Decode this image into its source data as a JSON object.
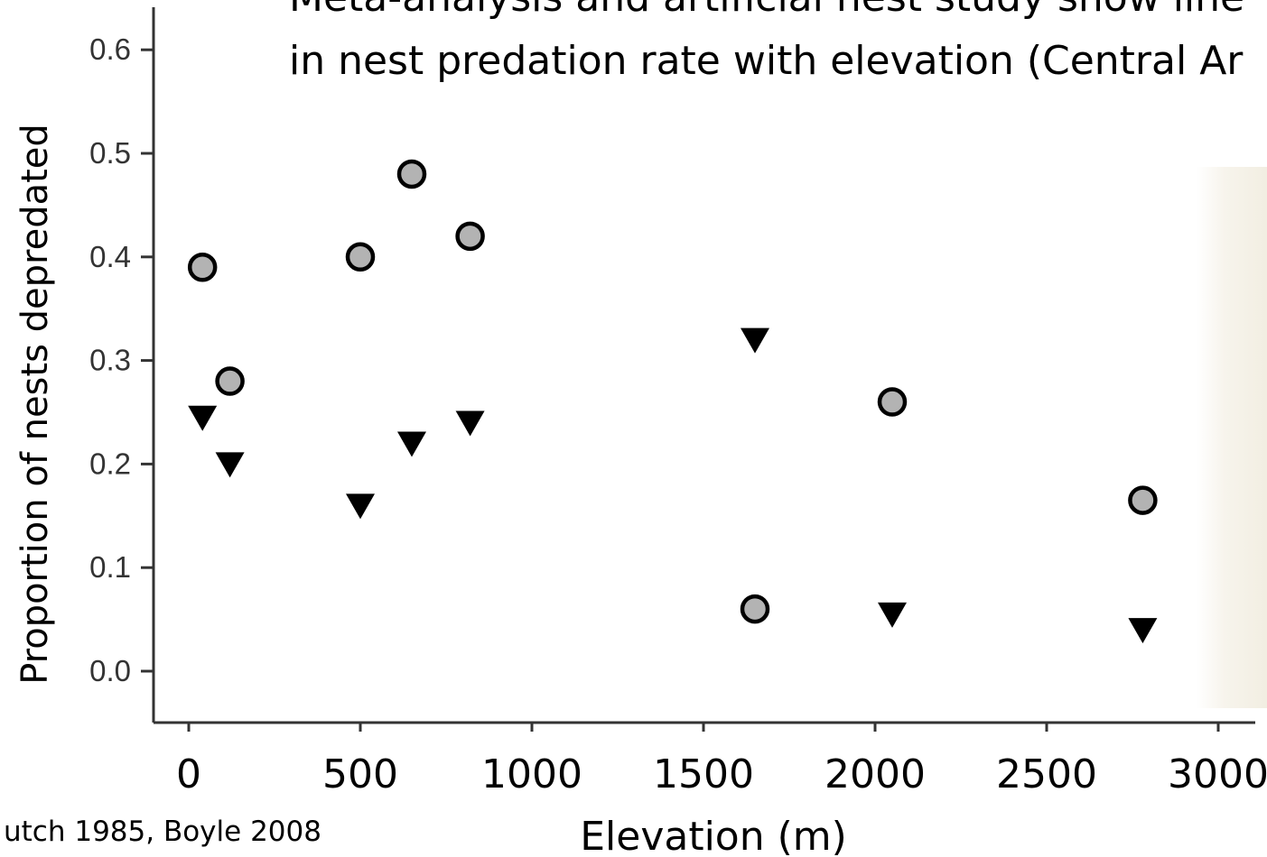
{
  "header": {
    "title_line_1": "Meta-analysis and artificial nest study show line",
    "title_line_2": "in nest predation rate with elevation (Central Ar"
  },
  "citation": "utch 1985, Boyle 2008",
  "chart_data": {
    "type": "scatter",
    "xlabel": "Elevation (m)",
    "ylabel": "Proportion of nests depredated",
    "xlim": [
      -100,
      3100
    ],
    "ylim": [
      -0.05,
      0.65
    ],
    "x_ticks": [
      "0",
      "500",
      "1000",
      "1500",
      "2000",
      "2500",
      "3000"
    ],
    "y_ticks": [
      "0.0",
      "0.1",
      "0.2",
      "0.3",
      "0.4",
      "0.5",
      "0.6"
    ],
    "grid": false,
    "legend": "none",
    "series": [
      {
        "marker": "circle",
        "color": "#b3b3b3",
        "points": [
          {
            "x": 40,
            "y": 0.39
          },
          {
            "x": 120,
            "y": 0.28
          },
          {
            "x": 500,
            "y": 0.4
          },
          {
            "x": 650,
            "y": 0.48
          },
          {
            "x": 820,
            "y": 0.42
          },
          {
            "x": 1650,
            "y": 0.06
          },
          {
            "x": 2050,
            "y": 0.26
          },
          {
            "x": 2780,
            "y": 0.165
          }
        ]
      },
      {
        "marker": "triangle-down",
        "color": "#000000",
        "points": [
          {
            "x": 40,
            "y": 0.245
          },
          {
            "x": 120,
            "y": 0.2
          },
          {
            "x": 500,
            "y": 0.16
          },
          {
            "x": 650,
            "y": 0.22
          },
          {
            "x": 820,
            "y": 0.24
          },
          {
            "x": 1650,
            "y": 0.32
          },
          {
            "x": 2050,
            "y": 0.055
          },
          {
            "x": 2780,
            "y": 0.04
          }
        ]
      }
    ]
  }
}
